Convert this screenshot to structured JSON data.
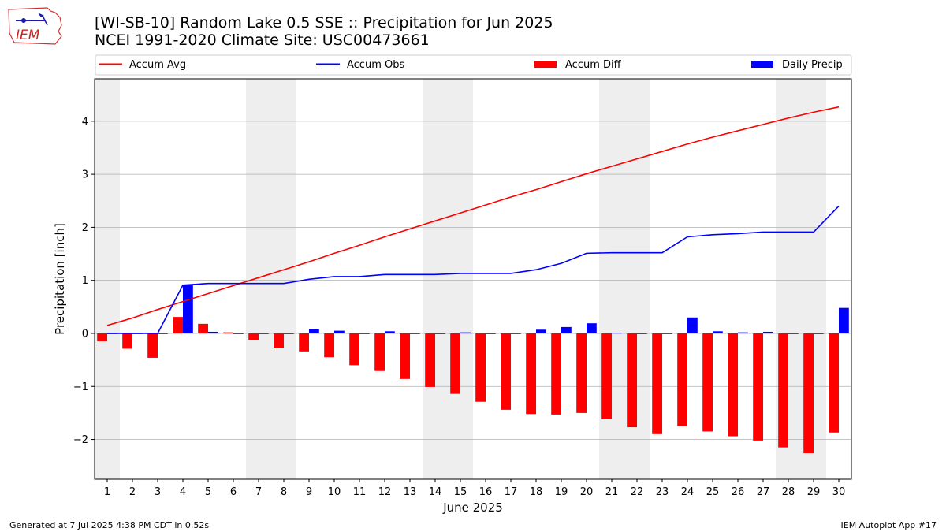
{
  "header": {
    "title_line1": "[WI-SB-10] Random Lake 0.5 SSE :: Precipitation for Jun 2025",
    "title_line2": "NCEI 1991-2020 Climate Site: USC00473661"
  },
  "logo": {
    "text": "IEM"
  },
  "footer": {
    "left": "Generated at 7 Jul 2025 4:38 PM CDT in 0.52s",
    "right": "IEM Autoplot App #17"
  },
  "colors": {
    "accum_avg": "#ff0000",
    "accum_obs": "#0000ff",
    "accum_diff": "#ff0000",
    "daily_precip": "#0000ff",
    "weekend_shade": "#eeeeee",
    "grid": "#b0b0b0"
  },
  "chart_data": {
    "type": "bar",
    "xlabel": "June 2025",
    "ylabel": "Precipitation [inch]",
    "ylim": [
      -2.75,
      4.8
    ],
    "yticks": [
      -2,
      -1,
      0,
      1,
      2,
      3,
      4
    ],
    "ytick_labels": [
      "−2",
      "−1",
      "0",
      "1",
      "2",
      "3",
      "4"
    ],
    "grid": "horizontal",
    "legend_placement": "top",
    "days": [
      1,
      2,
      3,
      4,
      5,
      6,
      7,
      8,
      9,
      10,
      11,
      12,
      13,
      14,
      15,
      16,
      17,
      18,
      19,
      20,
      21,
      22,
      23,
      24,
      25,
      26,
      27,
      28,
      29,
      30
    ],
    "weekend_shading": [
      [
        1,
        1
      ],
      [
        7,
        8
      ],
      [
        14,
        15
      ],
      [
        21,
        22
      ],
      [
        28,
        29
      ]
    ],
    "series": [
      {
        "name": "Accum Avg",
        "kind": "line",
        "values": [
          0.15,
          0.29,
          0.45,
          0.6,
          0.75,
          0.9,
          1.05,
          1.2,
          1.35,
          1.51,
          1.66,
          1.82,
          1.97,
          2.12,
          2.27,
          2.42,
          2.57,
          2.71,
          2.86,
          3.01,
          3.15,
          3.29,
          3.43,
          3.57,
          3.7,
          3.82,
          3.94,
          4.06,
          4.17,
          4.27
        ]
      },
      {
        "name": "Accum Obs",
        "kind": "line",
        "values": [
          0.0,
          0.0,
          0.0,
          0.91,
          0.94,
          0.94,
          0.94,
          0.94,
          1.02,
          1.07,
          1.07,
          1.11,
          1.11,
          1.11,
          1.13,
          1.13,
          1.13,
          1.2,
          1.32,
          1.51,
          1.52,
          1.52,
          1.52,
          1.82,
          1.86,
          1.88,
          1.91,
          1.91,
          1.91,
          2.4
        ]
      },
      {
        "name": "Accum Diff",
        "kind": "bar",
        "values": [
          -0.15,
          -0.29,
          -0.46,
          0.31,
          0.18,
          0.02,
          -0.12,
          -0.27,
          -0.34,
          -0.45,
          -0.6,
          -0.71,
          -0.86,
          -1.01,
          -1.14,
          -1.29,
          -1.44,
          -1.52,
          -1.53,
          -1.5,
          -1.62,
          -1.77,
          -1.9,
          -1.75,
          -1.85,
          -1.94,
          -2.02,
          -2.15,
          -2.26,
          -1.87
        ]
      },
      {
        "name": "Daily Precip",
        "kind": "bar",
        "values": [
          0.0,
          0.0,
          0.0,
          0.92,
          0.03,
          0.0,
          0.0,
          0.0,
          0.08,
          0.05,
          0.0,
          0.04,
          0.0,
          0.0,
          0.02,
          0.0,
          0.0,
          0.07,
          0.12,
          0.19,
          0.01,
          0.0,
          0.0,
          0.3,
          0.04,
          0.02,
          0.03,
          0.0,
          0.0,
          0.48
        ]
      }
    ]
  }
}
